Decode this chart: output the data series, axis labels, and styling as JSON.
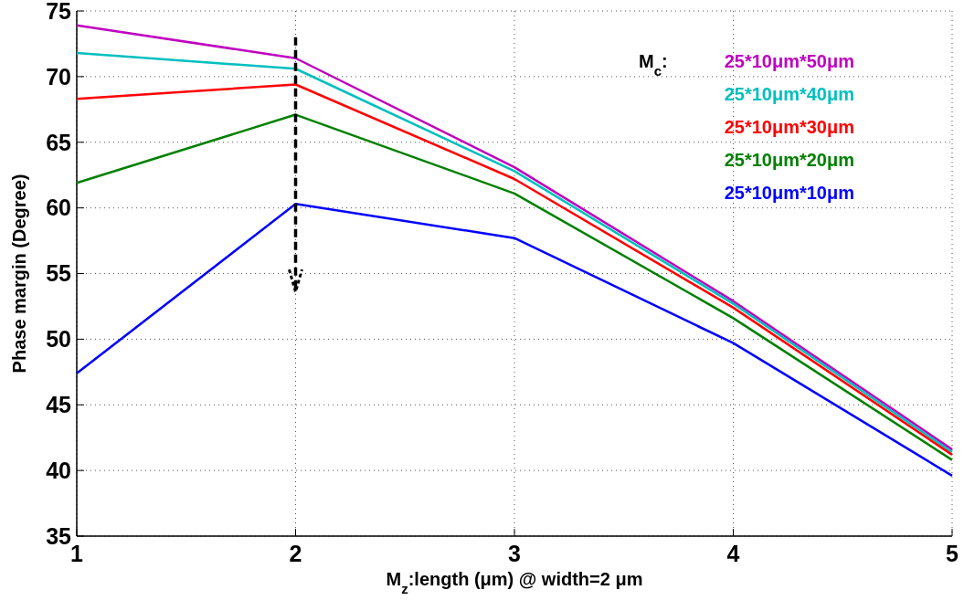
{
  "chart_data": {
    "type": "line",
    "xlabel": "M$_{z}$:length (μm) @ width=2 μm",
    "ylabel": "Phase margin (Degree)",
    "legend_title": "M$_{c}$:",
    "x": [
      1,
      2,
      3,
      4,
      5
    ],
    "series": [
      {
        "name": "25*10μm*50μm",
        "color": "#bf00bf",
        "values": [
          73.9,
          71.4,
          63.1,
          52.9,
          41.6
        ]
      },
      {
        "name": "25*10μm*40μm",
        "color": "#00bfbf",
        "values": [
          71.8,
          70.6,
          62.8,
          52.7,
          41.4
        ]
      },
      {
        "name": "25*10μm*30μm",
        "color": "#ff0000",
        "values": [
          68.3,
          69.4,
          62.2,
          52.4,
          41.2
        ]
      },
      {
        "name": "25*10μm*20μm",
        "color": "#008000",
        "values": [
          61.9,
          67.1,
          61.1,
          51.6,
          40.8
        ]
      },
      {
        "name": "25*10μm*10μm",
        "color": "#0000ff",
        "values": [
          47.4,
          60.3,
          57.7,
          49.7,
          39.6
        ]
      }
    ],
    "xlim": [
      1,
      5
    ],
    "xticks": [
      1,
      2,
      3,
      4,
      5
    ],
    "ylim": [
      35,
      75
    ],
    "yticks": [
      35,
      40,
      45,
      50,
      55,
      60,
      65,
      70,
      75
    ],
    "grid": true,
    "legend": "top right",
    "line_style": "solid",
    "marker": "none"
  }
}
